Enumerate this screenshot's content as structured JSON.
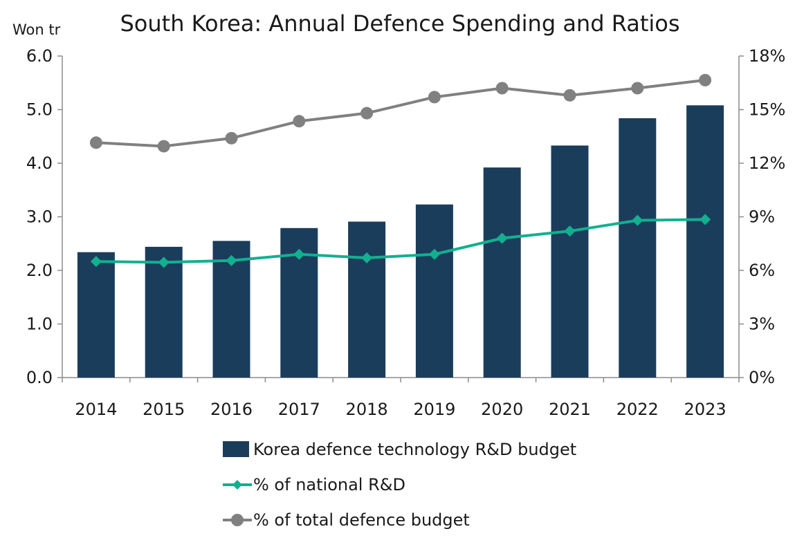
{
  "chart_data": {
    "type": "bar",
    "title": "South Korea: Annual Defence Spending and Ratios",
    "ylabel": "Won tr",
    "ylim": [
      0,
      6
    ],
    "y2lim": [
      0,
      18
    ],
    "y_ticks": [
      "0.0",
      "1.0",
      "2.0",
      "3.0",
      "4.0",
      "5.0",
      "6.0"
    ],
    "y2_ticks": [
      "0%",
      "3%",
      "6%",
      "9%",
      "12%",
      "15%",
      "18%"
    ],
    "categories": [
      "2014",
      "2015",
      "2016",
      "2017",
      "2018",
      "2019",
      "2020",
      "2021",
      "2022",
      "2023"
    ],
    "series": [
      {
        "name": "Korea defence technology R&D budget",
        "kind": "bar",
        "axis": "left",
        "color": "#1b3d5c",
        "values": [
          2.34,
          2.44,
          2.55,
          2.79,
          2.91,
          3.23,
          3.92,
          4.33,
          4.84,
          5.08
        ]
      },
      {
        "name": "% of national R&D",
        "kind": "line",
        "marker": "diamond",
        "axis": "right",
        "color": "#12b08f",
        "values": [
          6.5,
          6.45,
          6.55,
          6.9,
          6.7,
          6.9,
          7.8,
          8.2,
          8.8,
          8.85
        ]
      },
      {
        "name": "% of total defence budget",
        "kind": "line",
        "marker": "circle",
        "axis": "right",
        "color": "#808080",
        "values": [
          13.15,
          12.95,
          13.4,
          14.35,
          14.8,
          15.7,
          16.2,
          15.8,
          16.2,
          16.65
        ]
      }
    ],
    "legend_position": "bottom"
  }
}
